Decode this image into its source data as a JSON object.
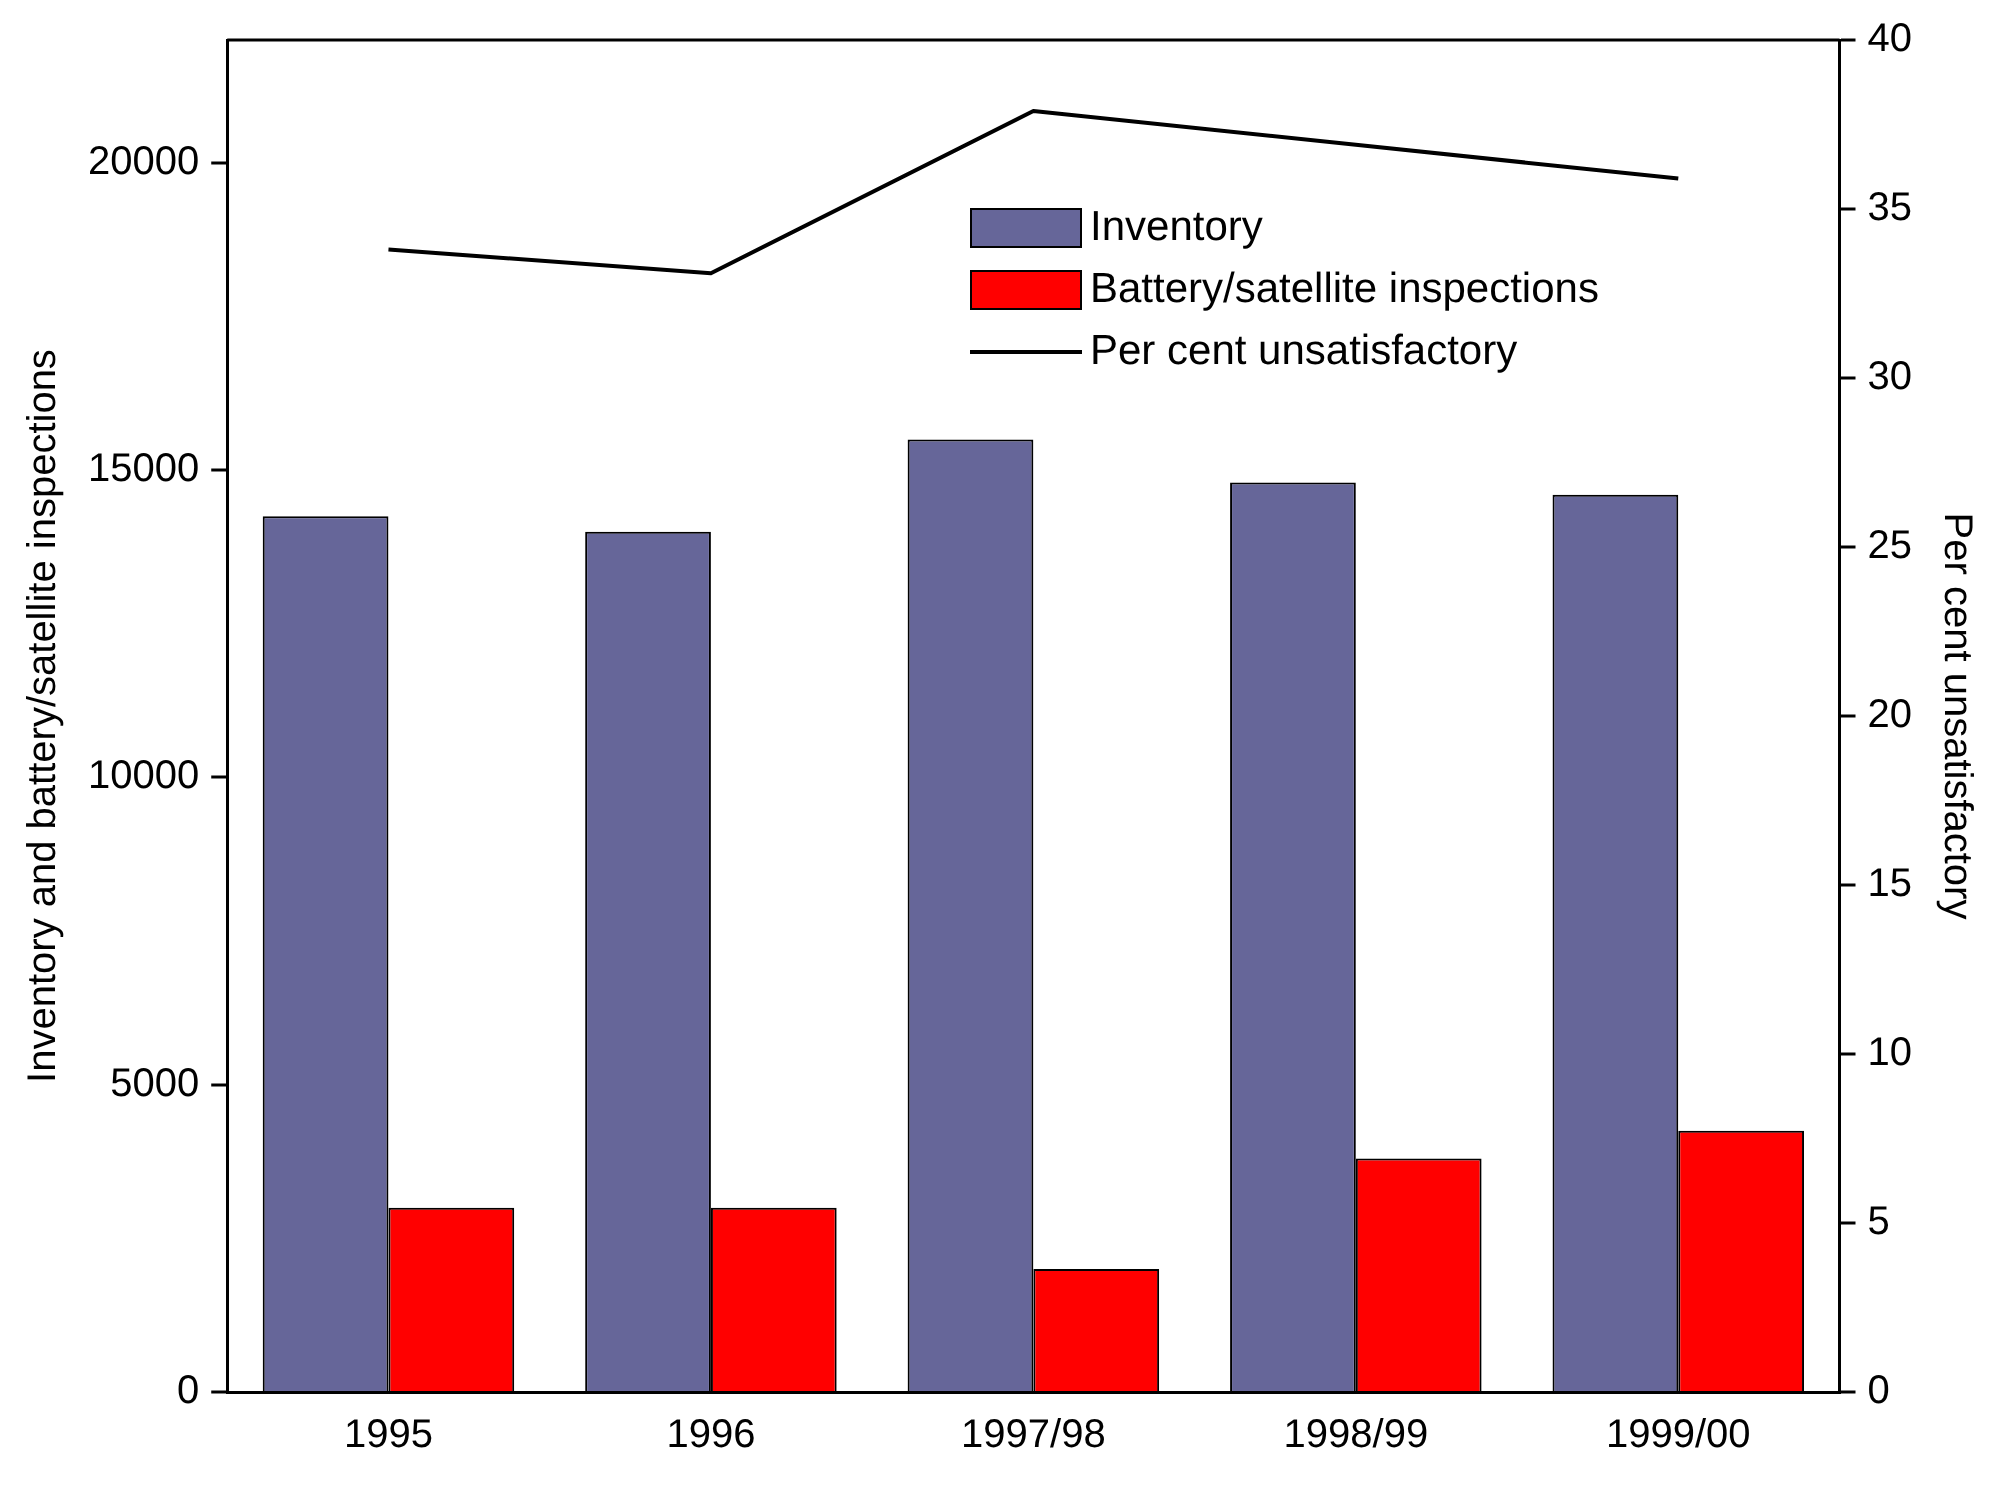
{
  "chart_data": {
    "type": "bar",
    "categories": [
      "1995",
      "1996",
      "1997/98",
      "1998/99",
      "1999/00"
    ],
    "ylabel": "Inventory and battery/satellite inspections",
    "y2label": "Per cent unsatisfactory",
    "series": [
      {
        "name": "Inventory",
        "color": "#666699",
        "values": [
          14250,
          14000,
          15500,
          14800,
          14600
        ]
      },
      {
        "name": "Battery/satellite inspections",
        "color": "#ff0000",
        "values": [
          3000,
          3000,
          2000,
          3800,
          4250
        ]
      },
      {
        "name": "Per cent unsatisfactory",
        "type": "line",
        "axis": "y2",
        "color": "#000000",
        "values": [
          33.8,
          33.1,
          37.9,
          36.9,
          35.9
        ]
      }
    ],
    "ylim": [
      0,
      22000
    ],
    "yticks": [
      0,
      5000,
      10000,
      15000,
      20000
    ],
    "y2lim": [
      0,
      40
    ],
    "y2ticks": [
      0,
      5,
      10,
      15,
      20,
      25,
      30,
      35,
      40
    ],
    "grid": false,
    "legend": "top",
    "marker": "none"
  }
}
